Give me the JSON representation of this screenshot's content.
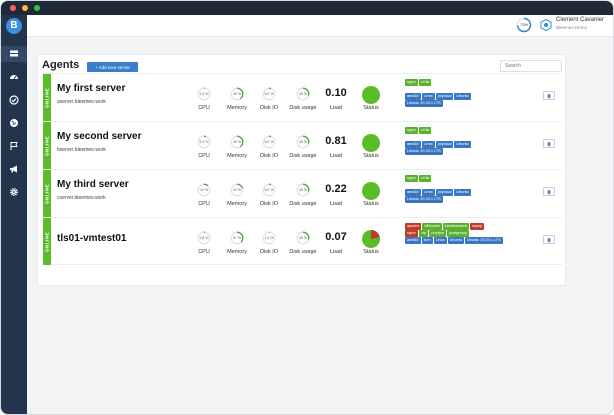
{
  "colors": {
    "accent": "#3a7dc9",
    "online": "#5bbd2b",
    "sidebar": "#23344d",
    "status_ok": "#5bbd2b",
    "status_critical": "#c0392b"
  },
  "sidebar": {
    "logo": "B",
    "items": [
      {
        "icon": "servers-icon",
        "active": true
      },
      {
        "icon": "dashboard-icon",
        "active": false
      },
      {
        "icon": "check-circle-icon",
        "active": false
      },
      {
        "icon": "globe-icon",
        "active": false
      },
      {
        "icon": "flag-icon",
        "active": false
      },
      {
        "icon": "megaphone-icon",
        "active": false
      },
      {
        "icon": "gear-icon",
        "active": false
      }
    ]
  },
  "topbar": {
    "quota_percent": "73%",
    "quota_value": 0.73,
    "user_name": "Clement Cavanier",
    "user_org": "Bleemeo Demo"
  },
  "page": {
    "title": "Agents",
    "add_button": "+ Add new server",
    "search_placeholder": "Search"
  },
  "labels": {
    "cpu": "CPU",
    "memory": "Memory",
    "disk_io": "Disk IO",
    "disk_usage": "Disk usage",
    "load": "Load",
    "status": "Status",
    "online": "ONLINE"
  },
  "agents": [
    {
      "name": "My first server",
      "fqdn": "aserver.bleemeo.work",
      "cpu": "2.3 %",
      "cpu_v": 0.023,
      "memory": "40 %",
      "memory_v": 0.4,
      "disk_io": "5.0 %",
      "disk_io_v": 0.05,
      "disk_usage": "30 %",
      "disk_usage_v": 0.3,
      "load": "0.10",
      "status": "ok",
      "tags": [
        [
          {
            "text": "nginx",
            "color": "green"
          },
          {
            "text": "redis",
            "color": "green"
          }
        ],
        [
          {
            "text": "amd64",
            "color": "blue"
          },
          {
            "text": "Linux",
            "color": "blue"
          },
          {
            "text": "physical",
            "color": "blue"
          },
          {
            "text": "Ubuntu",
            "color": "blue"
          }
        ],
        [
          {
            "text": "Ubuntu 20.04.1 LTS",
            "color": "blue"
          }
        ]
      ]
    },
    {
      "name": "My second server",
      "fqdn": "bserver.bleemeo.work",
      "cpu": "5.3 %",
      "cpu_v": 0.053,
      "memory": "40 %",
      "memory_v": 0.4,
      "disk_io": "5.0 %",
      "disk_io_v": 0.05,
      "disk_usage": "30 %",
      "disk_usage_v": 0.3,
      "load": "0.81",
      "status": "ok",
      "tags": [
        [
          {
            "text": "nginx",
            "color": "green"
          },
          {
            "text": "redis",
            "color": "green"
          }
        ],
        [
          {
            "text": "amd64",
            "color": "blue"
          },
          {
            "text": "Linux",
            "color": "blue"
          },
          {
            "text": "physical",
            "color": "blue"
          },
          {
            "text": "Ubuntu",
            "color": "blue"
          }
        ],
        [
          {
            "text": "Ubuntu 20.04.1 LTS",
            "color": "blue"
          }
        ]
      ]
    },
    {
      "name": "My third server",
      "fqdn": "cserver.bleemeo.work",
      "cpu": "12 %",
      "cpu_v": 0.12,
      "memory": "21 %",
      "memory_v": 0.21,
      "disk_io": "5.0 %",
      "disk_io_v": 0.05,
      "disk_usage": "30 %",
      "disk_usage_v": 0.3,
      "load": "0.22",
      "status": "ok",
      "tags": [
        [
          {
            "text": "nginx",
            "color": "green"
          },
          {
            "text": "redis",
            "color": "green"
          }
        ],
        [
          {
            "text": "amd64",
            "color": "blue"
          },
          {
            "text": "Linux",
            "color": "blue"
          },
          {
            "text": "physical",
            "color": "blue"
          },
          {
            "text": "Ubuntu",
            "color": "blue"
          }
        ],
        [
          {
            "text": "Ubuntu 20.04.1 LTS",
            "color": "blue"
          }
        ]
      ]
    },
    {
      "name": "tls01-vmtest01",
      "fqdn": "",
      "cpu": "2.8 %",
      "cpu_v": 0.028,
      "memory": "37 %",
      "memory_v": 0.37,
      "disk_io": "1.2 %",
      "disk_io_v": 0.012,
      "disk_usage": "30 %",
      "disk_usage_v": 0.3,
      "load": "0.07",
      "status": "mixed",
      "status_critical_fraction": 0.22,
      "tags": [
        [
          {
            "text": "apache",
            "color": "red"
          },
          {
            "text": "bitbucket",
            "color": "green"
          },
          {
            "text": "elasticsearch",
            "color": "green"
          },
          {
            "text": "mysql",
            "color": "red"
          }
        ],
        [
          {
            "text": "nginx",
            "color": "red"
          },
          {
            "text": "ntp",
            "color": "green"
          },
          {
            "text": "phpfpm",
            "color": "green"
          },
          {
            "text": "postgresql",
            "color": "green"
          }
        ],
        [
          {
            "text": "amd64",
            "color": "blue"
          },
          {
            "text": "kvm",
            "color": "blue"
          },
          {
            "text": "Linux",
            "color": "blue"
          },
          {
            "text": "Ubuntu",
            "color": "blue"
          },
          {
            "text": "Ubuntu 20.04.1 LTS",
            "color": "blue"
          }
        ]
      ]
    }
  ]
}
